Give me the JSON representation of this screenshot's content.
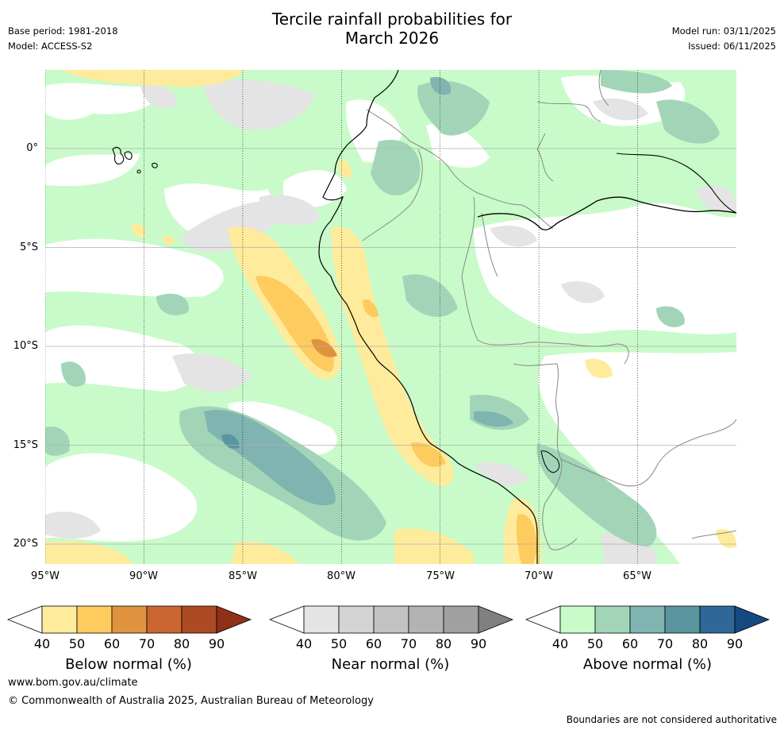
{
  "header": {
    "title_line1": "Tercile rainfall probabilities for",
    "title_line2": "March 2026",
    "base_period": "Base period: 1981-2018",
    "model": "Model: ACCESS-S2",
    "model_run": "Model run: 03/11/2025",
    "issued": "Issued: 06/11/2025"
  },
  "map": {
    "lat_labels": [
      "0°",
      "5°S",
      "10°S",
      "15°S",
      "20°S"
    ],
    "lon_labels": [
      "95°W",
      "90°W",
      "85°W",
      "80°W",
      "75°W",
      "70°W",
      "65°W"
    ]
  },
  "legends": {
    "ticks": [
      "40",
      "50",
      "60",
      "70",
      "80",
      "90"
    ],
    "below": {
      "label": "Below normal (%)",
      "colors": [
        "#ffffff",
        "#ffeb9c",
        "#fecb5e",
        "#e0933f",
        "#cc6630",
        "#ad4a23",
        "#8f3018"
      ]
    },
    "near": {
      "label": "Near normal (%)",
      "colors": [
        "#ffffff",
        "#e4e4e4",
        "#d4d4d4",
        "#c2c2c2",
        "#b3b3b3",
        "#a0a0a0",
        "#808080"
      ]
    },
    "above": {
      "label": "Above normal (%)",
      "colors": [
        "#ffffff",
        "#c8fbc9",
        "#a2d5b8",
        "#80b4b0",
        "#5b95a0",
        "#2f6898",
        "#154a80"
      ]
    }
  },
  "footer": {
    "website": "www.bom.gov.au/climate",
    "copyright": "© Commonwealth of Australia 2025, Australian Bureau of Meteorology",
    "disclaimer": "Boundaries are not considered authoritative"
  }
}
